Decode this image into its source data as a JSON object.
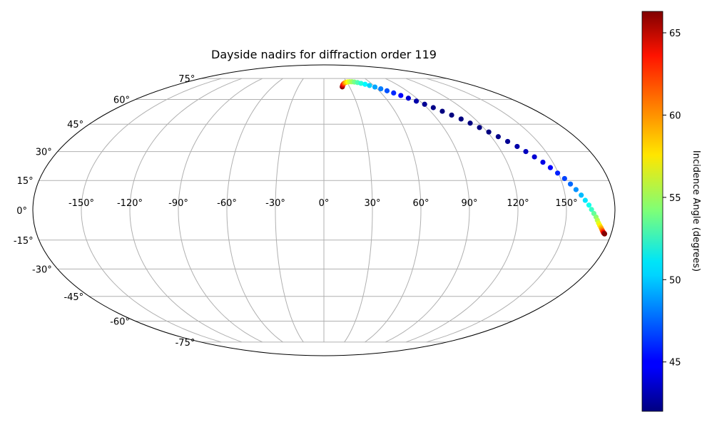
{
  "chart_data": {
    "type": "scatter",
    "projection": "mollweide",
    "title": "Dayside nadirs for diffraction order 119",
    "xlabel": "",
    "ylabel": "",
    "grid": true,
    "colormap": "jet",
    "lon_ticks": [
      "-150°",
      "-120°",
      "-90°",
      "-60°",
      "-30°",
      "0°",
      "30°",
      "60°",
      "90°",
      "120°",
      "150°"
    ],
    "lat_ticks": [
      "75°",
      "60°",
      "45°",
      "30°",
      "15°",
      "0°",
      "-15°",
      "-30°",
      "-45°",
      "-60°",
      "-75°"
    ],
    "colorbar": {
      "label": "Incidence Angle (degrees)",
      "range": [
        42,
        66.3
      ],
      "ticks": [
        "45",
        "50",
        "55",
        "60",
        "65"
      ]
    },
    "x": [
      21.5,
      22.5,
      23.5,
      25,
      27,
      29,
      31.5,
      34,
      37,
      40,
      43.5,
      47,
      51,
      55,
      59.5,
      64,
      68.5,
      73,
      77.5,
      82,
      86.5,
      91,
      95.5,
      100,
      104.5,
      109,
      113,
      117,
      121,
      125,
      129,
      133,
      136.5,
      140,
      143.5,
      146.5,
      149.5,
      152.5,
      155,
      157.5,
      160,
      162,
      164,
      165.5,
      167,
      168.5,
      169.5,
      170.5,
      171.5,
      172.5,
      173.2,
      173.8,
      174.3,
      174.7,
      175,
      175.3,
      175.5,
      175.7,
      175.8,
      175.9
    ],
    "y": [
      68.6,
      69.5,
      70.3,
      71.0,
      71.6,
      72.0,
      72.3,
      72.4,
      72.4,
      72.2,
      71.8,
      71.2,
      70.5,
      69.6,
      68.5,
      67.2,
      65.8,
      64.3,
      62.6,
      60.8,
      58.9,
      56.9,
      54.8,
      52.6,
      50.3,
      48.0,
      45.6,
      43.1,
      40.6,
      38.0,
      35.4,
      32.7,
      30.0,
      27.2,
      24.4,
      21.6,
      18.8,
      16.0,
      13.2,
      10.4,
      7.6,
      5.0,
      2.6,
      0.4,
      -1.6,
      -3.4,
      -5.0,
      -6.4,
      -7.6,
      -8.6,
      -9.4,
      -10.1,
      -10.6,
      -11.0,
      -11.3,
      -11.5,
      -11.6,
      -11.7,
      -11.8,
      -11.9
    ],
    "c": [
      66.2,
      65.0,
      63.5,
      61.8,
      60.0,
      58.5,
      57.2,
      56.0,
      55.0,
      54.0,
      53.0,
      52.0,
      51.0,
      50.0,
      49.0,
      48.0,
      47.0,
      46.0,
      45.0,
      44.0,
      43.0,
      42.5,
      42.2,
      42.0,
      42.0,
      42.0,
      42.0,
      42.0,
      42.0,
      42.2,
      42.5,
      43.0,
      43.5,
      44.0,
      44.5,
      45.0,
      45.8,
      46.6,
      47.5,
      48.5,
      49.5,
      50.5,
      51.5,
      52.5,
      53.5,
      54.5,
      55.5,
      56.5,
      57.5,
      58.5,
      59.5,
      60.5,
      61.5,
      62.5,
      63.5,
      64.2,
      64.8,
      65.3,
      65.8,
      66.2
    ]
  }
}
